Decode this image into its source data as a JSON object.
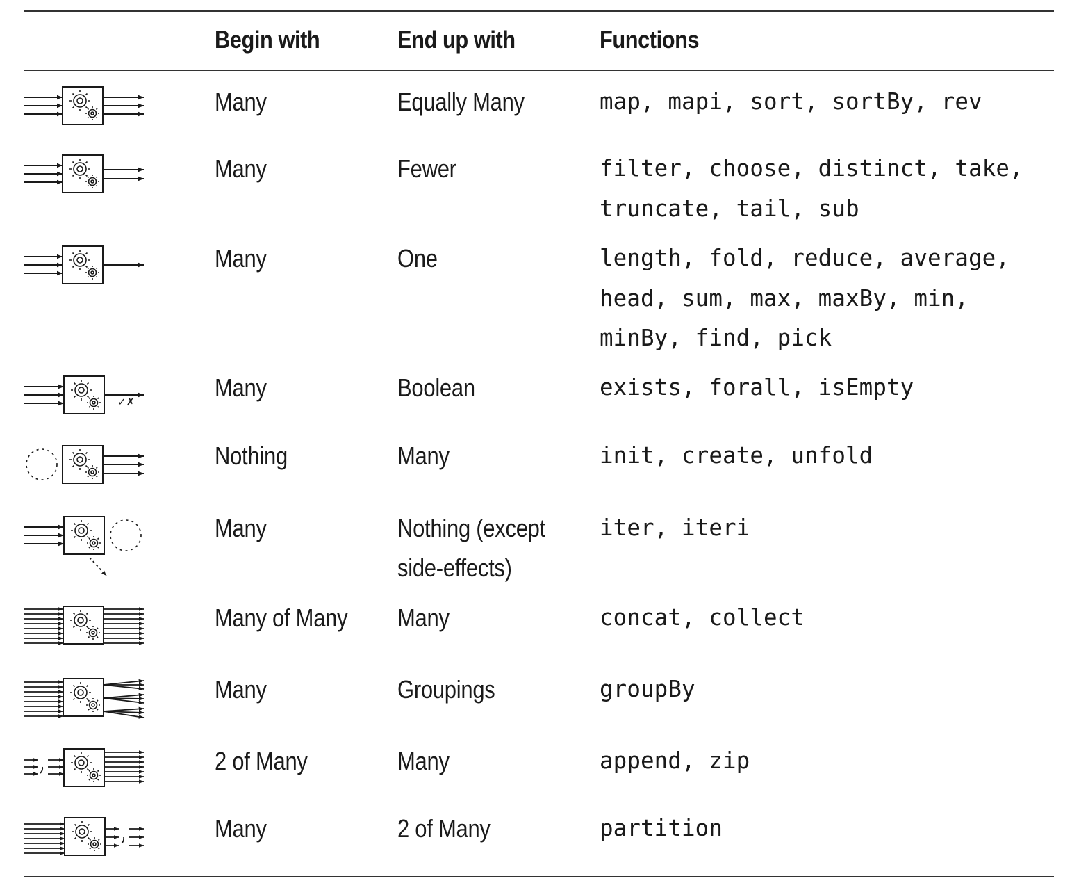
{
  "headers": {
    "icon": "",
    "begin": "Begin with",
    "end": "End up with",
    "functions": "Functions"
  },
  "rows": [
    {
      "icon": "map-icon",
      "begin": "Many",
      "end": "Equally Many",
      "functions": "map, mapi, sort, sortBy, rev"
    },
    {
      "icon": "filter-icon",
      "begin": "Many",
      "end": "Fewer",
      "functions": "filter, choose, distinct, take,\ntruncate, tail, sub"
    },
    {
      "icon": "reduce-icon",
      "begin": "Many",
      "end": "One",
      "functions": "length, fold, reduce, average,\nhead, sum, max, maxBy, min,\nminBy, find, pick"
    },
    {
      "icon": "predicate-icon",
      "begin": "Many",
      "end": "Boolean",
      "functions": "exists, forall, isEmpty",
      "check_mark": "✓✗"
    },
    {
      "icon": "generate-icon",
      "begin": "Nothing",
      "end": "Many",
      "functions": "init, create, unfold"
    },
    {
      "icon": "iterate-icon",
      "begin": "Many",
      "end": "Nothing (except\nside-effects)",
      "functions": "iter, iteri"
    },
    {
      "icon": "flatten-icon",
      "begin": "Many of Many",
      "end": "Many",
      "functions": "concat, collect"
    },
    {
      "icon": "group-icon",
      "begin": "Many",
      "end": "Groupings",
      "functions": "groupBy"
    },
    {
      "icon": "combine-icon",
      "begin": "2 of Many",
      "end": "Many",
      "functions": "append, zip"
    },
    {
      "icon": "split-icon",
      "begin": "Many",
      "end": "2 of Many",
      "functions": "partition"
    }
  ]
}
